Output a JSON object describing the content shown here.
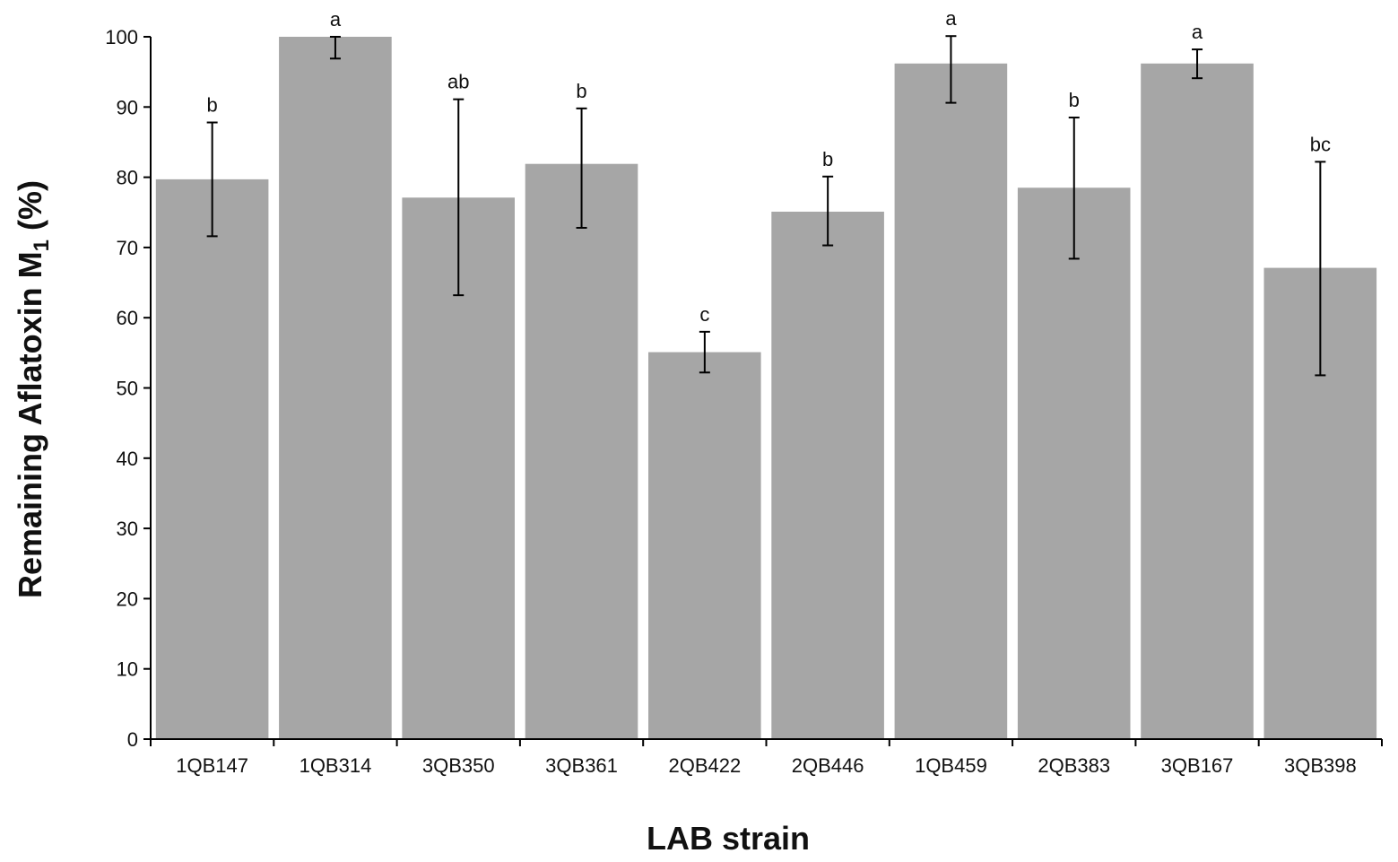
{
  "chart_data": {
    "type": "bar",
    "title": "",
    "xlabel": "LAB strain",
    "ylabel_main": "Remaining Aflatoxin M",
    "ylabel_subscript": "1",
    "ylabel_suffix": " (%)",
    "ylim": [
      0,
      100
    ],
    "yticks": [
      0,
      10,
      20,
      30,
      40,
      50,
      60,
      70,
      80,
      90,
      100
    ],
    "grid": false,
    "legend": "none",
    "bar_color": "#a6a6a6",
    "categories": [
      "1QB147",
      "1QB314",
      "3QB350",
      "3QB361",
      "2QB422",
      "2QB446",
      "1QB459",
      "2QB383",
      "3QB167",
      "3QB398"
    ],
    "values": [
      79.7,
      100.0,
      77.1,
      81.9,
      55.1,
      75.1,
      96.2,
      78.5,
      96.2,
      67.1
    ],
    "error_low": [
      71.6,
      96.9,
      63.2,
      72.8,
      52.2,
      70.3,
      90.6,
      68.4,
      94.1,
      51.8
    ],
    "error_high": [
      87.8,
      100.0,
      91.1,
      89.8,
      58.0,
      80.1,
      100.1,
      88.5,
      98.2,
      82.2
    ],
    "significance": [
      "b",
      "a",
      "ab",
      "b",
      "c",
      "b",
      "a",
      "b",
      "a",
      "bc"
    ]
  }
}
